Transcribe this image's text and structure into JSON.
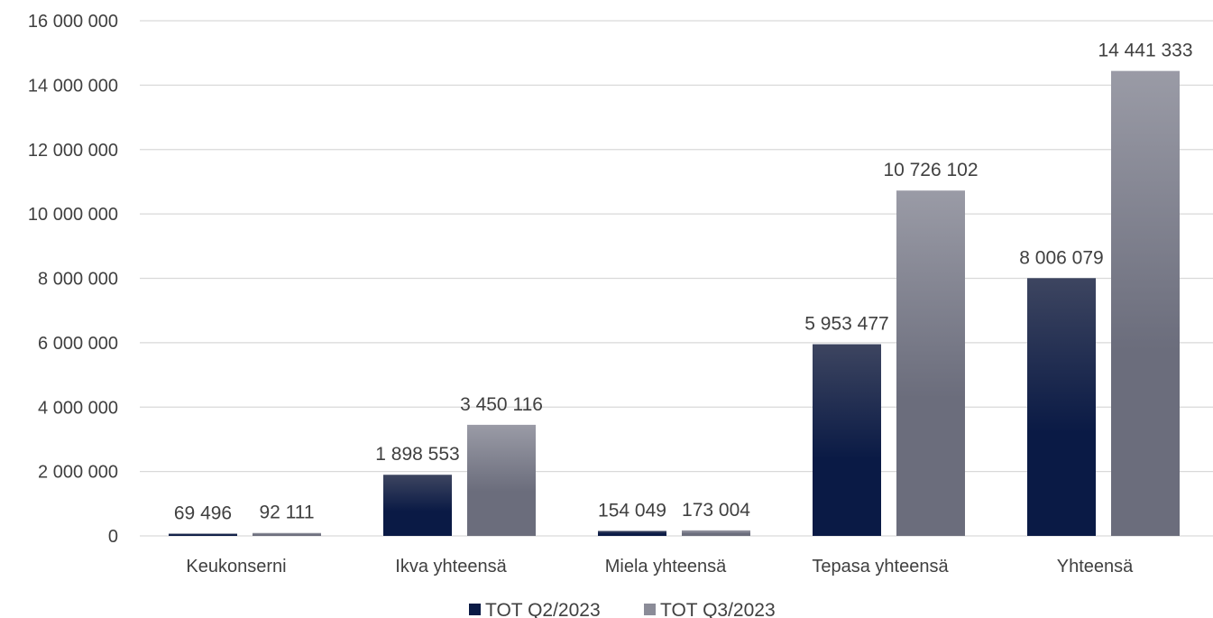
{
  "chart_data": {
    "type": "bar",
    "title": "",
    "xlabel": "",
    "ylabel": "",
    "categories": [
      "Keukonserni",
      "Ikva yhteensä",
      "Miela yhteensä",
      "Tepasa yhteensä",
      "Yhteensä"
    ],
    "series": [
      {
        "name": "TOT Q2/2023",
        "values": [
          69496,
          1898553,
          154049,
          5953477,
          8006079
        ],
        "labels": [
          "69 496",
          "1 898 553",
          "154 049",
          "5 953 477",
          "8 006 079"
        ],
        "color_top": "#3d4560",
        "color_bottom": "#0a1a45"
      },
      {
        "name": "TOT Q3/2023",
        "values": [
          92111,
          3450116,
          173004,
          10726102,
          14441333
        ],
        "labels": [
          "92 111",
          "3 450 116",
          "173 004",
          "10 726 102",
          "14 441 333"
        ],
        "color_top": "#9a9ba6",
        "color_bottom": "#6b6d7c"
      }
    ],
    "ylim": [
      0,
      16000000
    ],
    "yticks": [
      0,
      2000000,
      4000000,
      6000000,
      8000000,
      10000000,
      12000000,
      14000000,
      16000000
    ],
    "ytick_labels": [
      "0",
      "2 000 000",
      "4 000 000",
      "6 000 000",
      "8 000 000",
      "10 000 000",
      "12 000 000",
      "14 000 000",
      "16 000 000"
    ],
    "grid": true,
    "legend_position": "bottom-center",
    "gridline_color": "#d9d9d9",
    "text_color": "#404040"
  }
}
